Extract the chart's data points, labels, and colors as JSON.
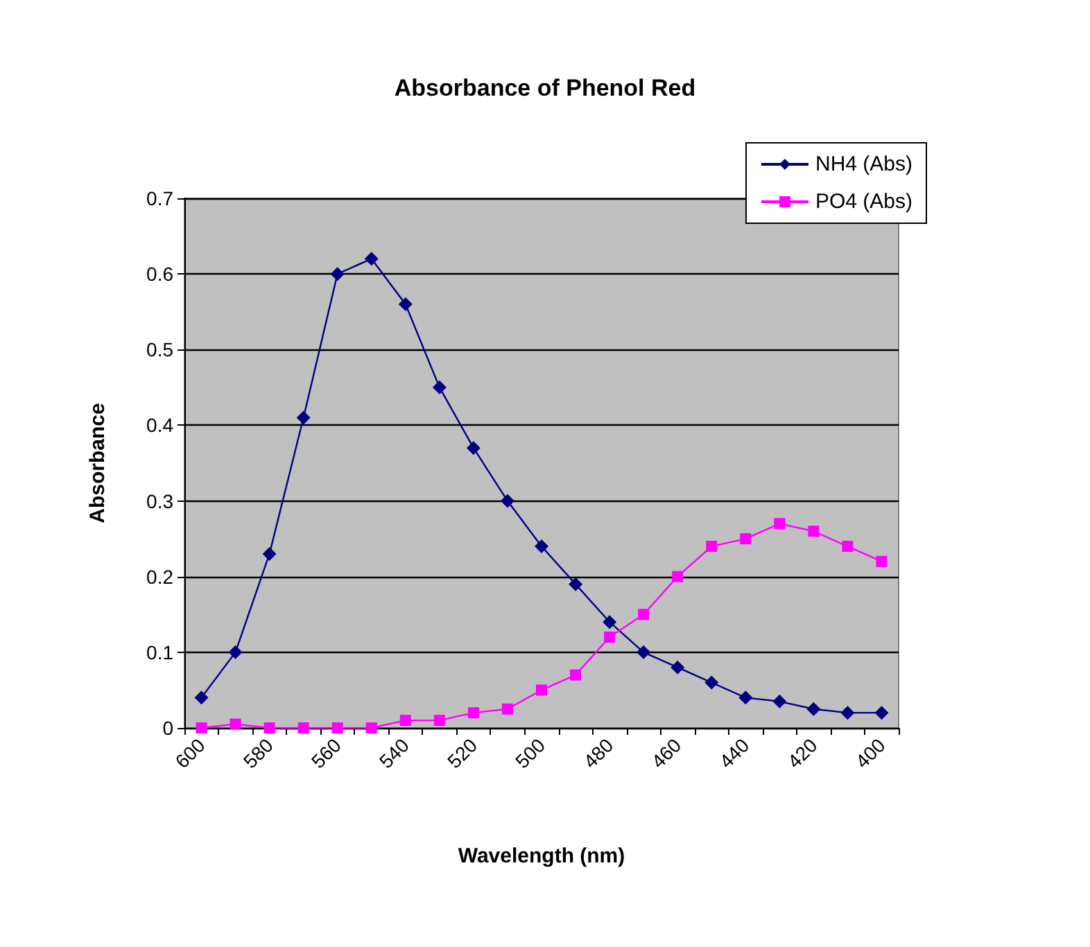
{
  "chart_data": {
    "type": "line",
    "title": "Absorbance of Phenol Red",
    "xlabel": "Wavelength (nm)",
    "ylabel": "Absorbance",
    "categories": [
      "600",
      null,
      "580",
      null,
      "560",
      null,
      "540",
      null,
      "520",
      null,
      "500",
      null,
      "480",
      null,
      "460",
      null,
      "440",
      null,
      "420",
      null,
      "400"
    ],
    "series": [
      {
        "name": "NH4 (Abs)",
        "color": "#000080",
        "marker": "diamond",
        "values": [
          0.04,
          0.1,
          0.23,
          0.41,
          0.6,
          0.62,
          0.56,
          0.45,
          0.37,
          0.3,
          0.24,
          0.19,
          0.14,
          0.1,
          0.08,
          0.06,
          0.04,
          0.035,
          0.025,
          0.02,
          0.02
        ]
      },
      {
        "name": "PO4 (Abs)",
        "color": "#ff00ff",
        "marker": "square",
        "values": [
          0,
          0.005,
          0,
          0,
          0,
          0,
          0.01,
          0.01,
          0.02,
          0.025,
          0.05,
          0.07,
          0.12,
          0.15,
          0.2,
          0.24,
          0.25,
          0.27,
          0.26,
          0.24,
          0.22
        ]
      }
    ],
    "ylim": [
      0,
      0.7
    ],
    "yticks": [
      0,
      0.1,
      0.2,
      0.3,
      0.4,
      0.5,
      0.6,
      0.7
    ],
    "grid": "y",
    "legend": "top right"
  }
}
